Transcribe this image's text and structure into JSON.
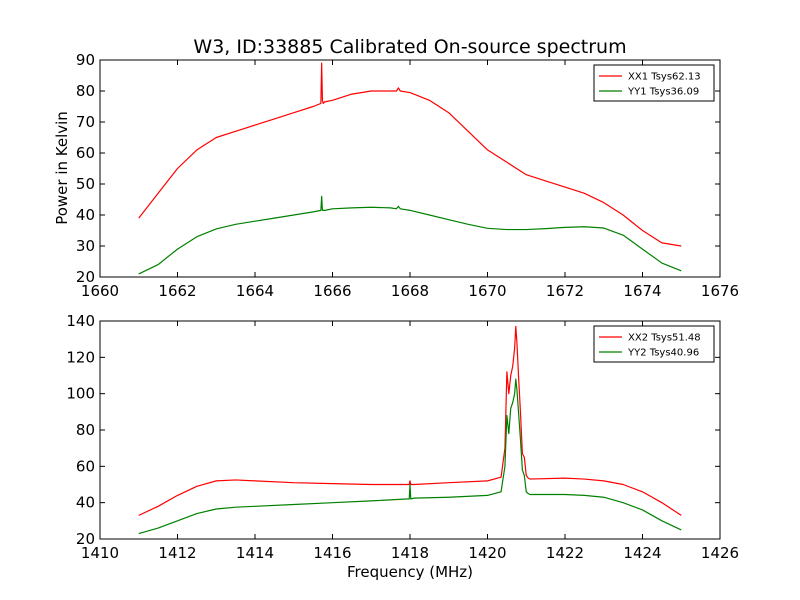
{
  "chart_data": [
    {
      "type": "line",
      "title": "W3, ID:33885 Calibrated On-source spectrum",
      "xlabel": "",
      "ylabel": "Power in Kelvin",
      "xlim": [
        1660,
        1676
      ],
      "ylim": [
        20,
        90
      ],
      "xticks": [
        1660,
        1662,
        1664,
        1666,
        1668,
        1670,
        1672,
        1674,
        1676
      ],
      "yticks": [
        20,
        30,
        40,
        50,
        60,
        70,
        80,
        90
      ],
      "legend_position": "top-right",
      "series": [
        {
          "name": "XX1 Tsys62.13",
          "color": "#ff0000",
          "x": [
            1661.0,
            1661.5,
            1662.0,
            1662.5,
            1663.0,
            1663.5,
            1664.0,
            1664.5,
            1665.0,
            1665.5,
            1665.7,
            1665.72,
            1665.74,
            1665.76,
            1665.8,
            1666.0,
            1666.5,
            1667.0,
            1667.5,
            1667.65,
            1667.7,
            1667.75,
            1668.0,
            1668.5,
            1669.0,
            1669.5,
            1670.0,
            1670.5,
            1671.0,
            1671.5,
            1672.0,
            1672.5,
            1673.0,
            1673.5,
            1674.0,
            1674.5,
            1675.0
          ],
          "y": [
            39,
            47,
            55,
            61,
            65,
            67,
            69,
            71,
            73,
            75,
            76,
            89,
            77,
            76,
            76.5,
            77,
            79,
            80,
            80,
            80,
            81,
            80,
            79.5,
            77,
            73,
            67,
            61,
            57,
            53,
            51,
            49,
            47,
            44,
            40,
            35,
            31,
            30
          ]
        },
        {
          "name": "YY1 Tsys36.09",
          "color": "#008000",
          "x": [
            1661.0,
            1661.5,
            1662.0,
            1662.5,
            1663.0,
            1663.5,
            1664.0,
            1664.5,
            1665.0,
            1665.5,
            1665.7,
            1665.72,
            1665.74,
            1665.76,
            1665.8,
            1666.0,
            1666.5,
            1667.0,
            1667.5,
            1667.65,
            1667.7,
            1667.75,
            1668.0,
            1668.5,
            1669.0,
            1669.5,
            1670.0,
            1670.5,
            1671.0,
            1671.5,
            1672.0,
            1672.5,
            1673.0,
            1673.5,
            1674.0,
            1674.5,
            1675.0
          ],
          "y": [
            21,
            24,
            29,
            33,
            35.5,
            37,
            38,
            39,
            40,
            41,
            41.5,
            46,
            41.5,
            41.5,
            41.5,
            42,
            42.3,
            42.5,
            42.3,
            42,
            42.8,
            42,
            41.5,
            40,
            38.5,
            37,
            35.7,
            35.3,
            35.3,
            35.6,
            36,
            36.2,
            35.8,
            33.5,
            29,
            24.5,
            22
          ]
        }
      ]
    },
    {
      "type": "line",
      "title": "",
      "xlabel": "Frequency (MHz)",
      "ylabel": "",
      "xlim": [
        1410,
        1426
      ],
      "ylim": [
        20,
        140
      ],
      "xticks": [
        1410,
        1412,
        1414,
        1416,
        1418,
        1420,
        1422,
        1424,
        1426
      ],
      "yticks": [
        20,
        40,
        60,
        80,
        100,
        120,
        140
      ],
      "legend_position": "top-right",
      "series": [
        {
          "name": "XX2 Tsys51.48",
          "color": "#ff0000",
          "x": [
            1411.0,
            1411.5,
            1412.0,
            1412.5,
            1413.0,
            1413.5,
            1414.0,
            1415.0,
            1416.0,
            1417.0,
            1417.9,
            1417.98,
            1418.0,
            1418.02,
            1418.1,
            1419.0,
            1420.0,
            1420.35,
            1420.45,
            1420.5,
            1420.55,
            1420.6,
            1420.65,
            1420.7,
            1420.73,
            1420.76,
            1420.8,
            1420.85,
            1420.9,
            1420.95,
            1421.0,
            1421.05,
            1421.1,
            1422.0,
            1422.5,
            1423.0,
            1423.5,
            1424.0,
            1424.5,
            1425.0
          ],
          "y": [
            33,
            38,
            44,
            49,
            52,
            52.5,
            52,
            51,
            50.5,
            50,
            50,
            50,
            52,
            50,
            50,
            51,
            52,
            54,
            70,
            112,
            100,
            110,
            115,
            125,
            137,
            128,
            110,
            90,
            67,
            65,
            55,
            53.5,
            53,
            53.5,
            53,
            52,
            50,
            46,
            40,
            33
          ]
        },
        {
          "name": "YY2 Tsys40.96",
          "color": "#008000",
          "x": [
            1411.0,
            1411.5,
            1412.0,
            1412.5,
            1413.0,
            1413.5,
            1414.0,
            1415.0,
            1416.0,
            1417.0,
            1417.9,
            1417.98,
            1418.0,
            1418.02,
            1418.1,
            1419.0,
            1420.0,
            1420.35,
            1420.45,
            1420.5,
            1420.55,
            1420.6,
            1420.65,
            1420.7,
            1420.73,
            1420.76,
            1420.8,
            1420.85,
            1420.9,
            1420.95,
            1421.0,
            1421.05,
            1421.1,
            1422.0,
            1422.5,
            1423.0,
            1423.5,
            1424.0,
            1424.5,
            1425.0
          ],
          "y": [
            23,
            26,
            30,
            34,
            36.5,
            37.5,
            38,
            39,
            40,
            41,
            42,
            42,
            50,
            42,
            42.5,
            43,
            44,
            46,
            60,
            88,
            78,
            92,
            95,
            100,
            108,
            102,
            90,
            75,
            58,
            55,
            46,
            45,
            44.5,
            44.5,
            44,
            43,
            40,
            36,
            30,
            25
          ]
        }
      ]
    }
  ]
}
